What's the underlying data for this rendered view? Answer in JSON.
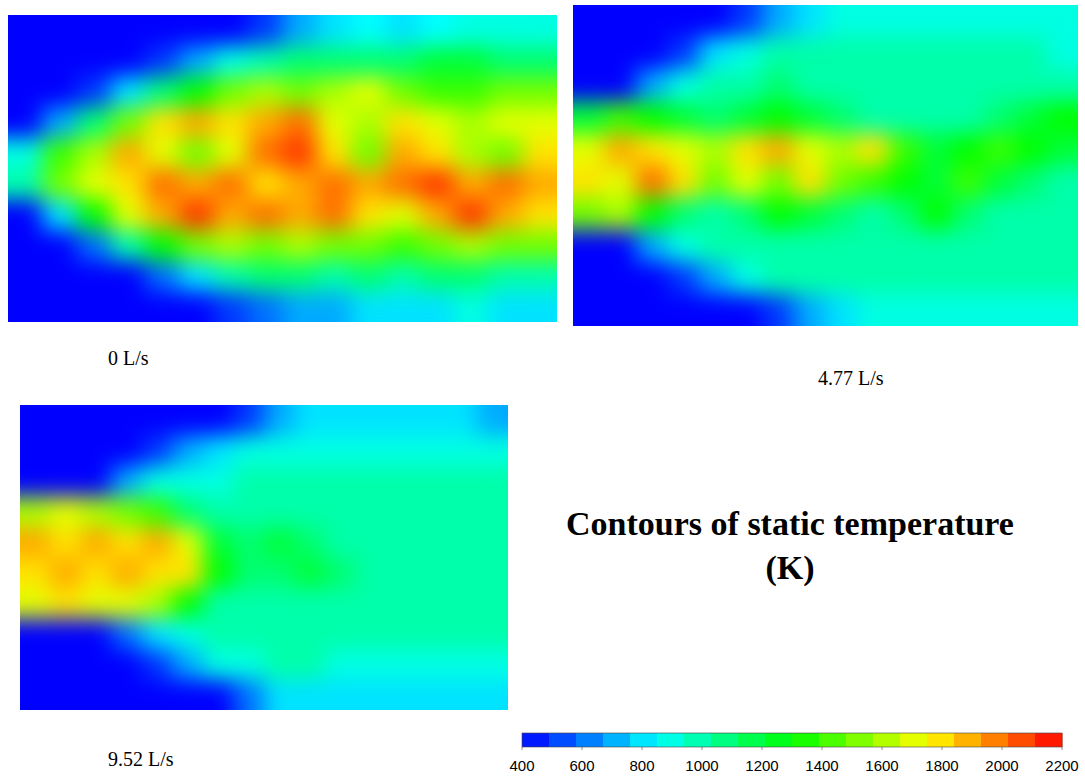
{
  "chart_data": {
    "type": "contour",
    "title": "Contours of static temperature (K)",
    "tick_labels": false,
    "color_range": [
      400,
      2200
    ],
    "color_ticks": [
      400,
      600,
      800,
      1000,
      1200,
      1400,
      1600,
      1800,
      2000,
      2200
    ],
    "panels": [
      {
        "label": "0 L/s",
        "cells": [
          [
            400,
            400,
            400,
            400,
            400,
            400,
            400,
            500,
            700,
            800,
            850,
            800,
            850,
            900,
            900,
            900
          ],
          [
            400,
            400,
            400,
            400,
            500,
            700,
            900,
            1000,
            1100,
            1100,
            1100,
            1100,
            1200,
            1200,
            1100,
            1100
          ],
          [
            400,
            400,
            500,
            800,
            1100,
            1300,
            1500,
            1600,
            1500,
            1600,
            1700,
            1500,
            1400,
            1400,
            1500,
            1500
          ],
          [
            400,
            700,
            1100,
            1500,
            1800,
            1900,
            1800,
            1900,
            2000,
            1700,
            1600,
            1800,
            1700,
            1600,
            1700,
            1700
          ],
          [
            900,
            1400,
            1600,
            1900,
            1700,
            1500,
            1700,
            2000,
            2100,
            1800,
            1500,
            1900,
            1800,
            1600,
            1500,
            1800
          ],
          [
            1000,
            1500,
            1700,
            1800,
            2000,
            1900,
            2000,
            1800,
            1900,
            2000,
            1900,
            2000,
            2100,
            1900,
            2000,
            1900
          ],
          [
            400,
            800,
            1300,
            1700,
            1900,
            2100,
            1900,
            2000,
            1900,
            2000,
            1800,
            1700,
            1900,
            2100,
            1900,
            1800
          ],
          [
            400,
            400,
            600,
            1000,
            1300,
            1500,
            1600,
            1500,
            1600,
            1500,
            1500,
            1400,
            1500,
            1600,
            1500,
            1500
          ],
          [
            400,
            400,
            400,
            400,
            600,
            800,
            1000,
            1100,
            1100,
            1000,
            1100,
            1000,
            1100,
            1100,
            1000,
            1000
          ],
          [
            400,
            400,
            400,
            400,
            400,
            400,
            500,
            600,
            700,
            700,
            800,
            800,
            800,
            900,
            800,
            800
          ]
        ]
      },
      {
        "label": "4.77 L/s",
        "cells": [
          [
            400,
            400,
            400,
            400,
            400,
            500,
            700,
            800,
            900,
            900,
            900,
            900,
            900,
            900,
            900,
            900
          ],
          [
            400,
            400,
            400,
            500,
            800,
            900,
            1000,
            1000,
            1000,
            1000,
            1000,
            1000,
            1000,
            1000,
            1000,
            900
          ],
          [
            400,
            400,
            700,
            900,
            1000,
            1000,
            1100,
            1000,
            1000,
            1000,
            1000,
            1000,
            1000,
            1000,
            1000,
            1000
          ],
          [
            1200,
            1400,
            1300,
            1200,
            1100,
            1200,
            1300,
            1200,
            1100,
            1000,
            1000,
            1000,
            1000,
            1100,
            1200,
            1300
          ],
          [
            1700,
            1900,
            1800,
            1700,
            1600,
            1800,
            1900,
            1700,
            1600,
            1800,
            1400,
            1200,
            1300,
            1400,
            1300,
            1200
          ],
          [
            1800,
            1700,
            2000,
            1800,
            1500,
            1700,
            1500,
            1800,
            1500,
            1400,
            1300,
            1200,
            1400,
            1200,
            1100,
            1000
          ],
          [
            1500,
            1600,
            1300,
            1100,
            1000,
            1100,
            1300,
            1200,
            1100,
            1000,
            1100,
            1300,
            1100,
            1000,
            1000,
            1000
          ],
          [
            400,
            400,
            700,
            900,
            1000,
            1000,
            1000,
            1000,
            1000,
            1000,
            1000,
            1000,
            1000,
            1000,
            1000,
            1000
          ],
          [
            400,
            400,
            400,
            500,
            700,
            900,
            1000,
            1000,
            1000,
            1000,
            1000,
            1000,
            1000,
            1000,
            1000,
            1000
          ],
          [
            400,
            400,
            400,
            400,
            400,
            400,
            500,
            700,
            800,
            900,
            900,
            900,
            900,
            900,
            900,
            900
          ]
        ]
      },
      {
        "label": "9.52 L/s",
        "cells": [
          [
            400,
            400,
            400,
            400,
            400,
            400,
            400,
            500,
            700,
            800,
            800,
            800,
            800,
            800,
            800,
            700
          ],
          [
            400,
            400,
            400,
            400,
            500,
            700,
            800,
            900,
            900,
            900,
            900,
            900,
            900,
            900,
            900,
            900
          ],
          [
            400,
            400,
            400,
            700,
            900,
            900,
            900,
            1000,
            1000,
            1000,
            1000,
            1000,
            1000,
            1000,
            1000,
            1000
          ],
          [
            1600,
            1700,
            1600,
            1500,
            1400,
            1100,
            1000,
            1000,
            1000,
            1000,
            1000,
            1000,
            1000,
            1000,
            1000,
            1000
          ],
          [
            1900,
            1800,
            1900,
            1800,
            1900,
            1700,
            1200,
            1100,
            1200,
            1100,
            1000,
            1000,
            1000,
            1000,
            1000,
            1000
          ],
          [
            1800,
            1900,
            1800,
            1900,
            1800,
            1800,
            1300,
            1100,
            1100,
            1200,
            1100,
            1000,
            1000,
            1000,
            1000,
            1000
          ],
          [
            1700,
            1800,
            1700,
            1700,
            1600,
            1300,
            1000,
            1000,
            1000,
            1000,
            1000,
            1000,
            1000,
            1000,
            1000,
            1000
          ],
          [
            400,
            400,
            400,
            600,
            800,
            900,
            1000,
            1000,
            1000,
            1000,
            1000,
            1000,
            1000,
            1000,
            1000,
            1000
          ],
          [
            400,
            400,
            400,
            400,
            500,
            700,
            900,
            900,
            1000,
            1000,
            900,
            900,
            900,
            900,
            900,
            900
          ],
          [
            400,
            400,
            400,
            400,
            400,
            400,
            400,
            600,
            800,
            800,
            800,
            800,
            800,
            800,
            800,
            800
          ]
        ]
      }
    ]
  }
}
